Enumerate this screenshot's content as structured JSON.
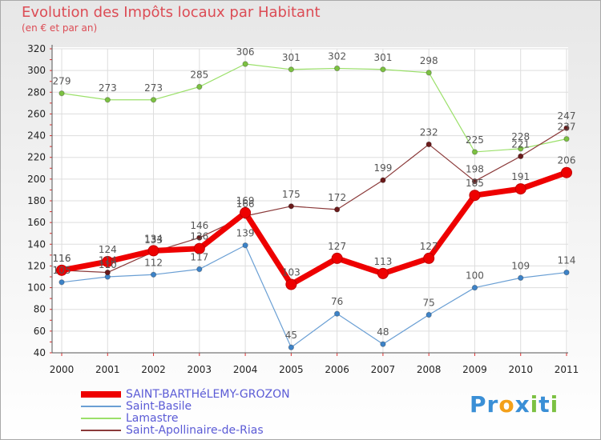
{
  "title": "Evolution des Impôts locaux par Habitant",
  "subtitle": "(en € et par an)",
  "logo": {
    "letters": [
      "P",
      "r",
      "o",
      "x",
      "i",
      "t",
      "i"
    ],
    "colors": [
      "#3a8fd6",
      "#3a8fd6",
      "#f3a01a",
      "#3a8fd6",
      "#7cc142",
      "#3a8fd6",
      "#7cc142"
    ]
  },
  "chart_data": {
    "type": "line",
    "title": "Evolution des Impôts locaux par Habitant",
    "subtitle": "(en € et par an)",
    "categories": [
      "2000",
      "2001",
      "2002",
      "2003",
      "2004",
      "2005",
      "2006",
      "2007",
      "2008",
      "2009",
      "2010",
      "2011"
    ],
    "ylim": [
      40,
      320
    ],
    "yticks": [
      40,
      60,
      80,
      100,
      120,
      140,
      160,
      180,
      200,
      220,
      240,
      260,
      280,
      300,
      320
    ],
    "grid": true,
    "legend_position": "bottom-left",
    "series": [
      {
        "name": "Saint-Basile",
        "color": "#6a9fd4",
        "marker": "#3d83c8",
        "bold": false,
        "values": [
          105,
          110,
          112,
          117,
          139,
          45,
          76,
          48,
          75,
          100,
          109,
          114
        ],
        "labels": [
          "105",
          "110",
          "112",
          "117",
          "139",
          "45",
          "76",
          "48",
          "75",
          "100",
          "109",
          "114"
        ]
      },
      {
        "name": "Lamastre",
        "color": "#9be06a",
        "marker": "#7cc142",
        "bold": false,
        "values": [
          279,
          273,
          273,
          285,
          306,
          301,
          302,
          301,
          298,
          225,
          228,
          237
        ],
        "labels": [
          "279",
          "273",
          "273",
          "285",
          "306",
          "301",
          "302",
          "301",
          "298",
          "225",
          "228",
          "237"
        ]
      },
      {
        "name": "Saint-Apollinaire-de-Rias",
        "color": "#8b3a3a",
        "marker": "#6b1a1a",
        "bold": false,
        "values": [
          116,
          114,
          133,
          146,
          166,
          175,
          172,
          199,
          232,
          198,
          221,
          247
        ],
        "labels": [
          "116",
          "114",
          "133",
          "146",
          "166",
          "175",
          "172",
          "199",
          "232",
          "198",
          "221",
          "247"
        ]
      },
      {
        "name": "SAINT-BARTHéLEMY-GROZON",
        "color": "#ee0000",
        "marker": "#ee0000",
        "bold": true,
        "values": [
          116,
          124,
          134,
          136,
          169,
          103,
          127,
          113,
          127,
          185,
          191,
          206
        ],
        "labels": [
          "116",
          "124",
          "134",
          "136",
          "169",
          "103",
          "127",
          "113",
          "127",
          "185",
          "191",
          "206"
        ]
      }
    ],
    "legend_order": [
      "SAINT-BARTHéLEMY-GROZON",
      "Saint-Basile",
      "Lamastre",
      "Saint-Apollinaire-de-Rias"
    ]
  }
}
